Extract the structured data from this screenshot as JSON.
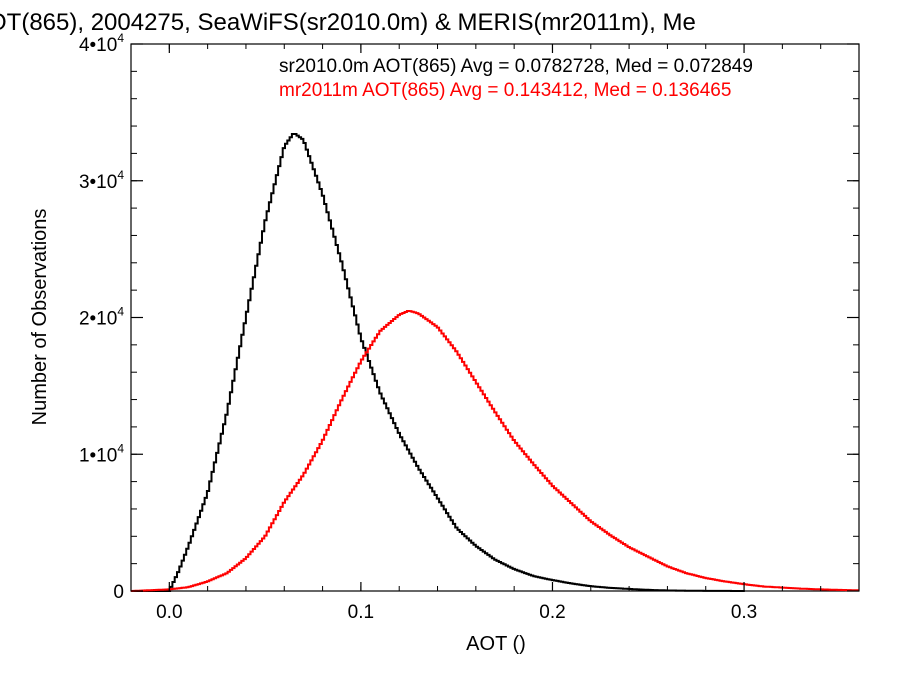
{
  "chart_data": {
    "type": "line",
    "title": "OT(865), 2004275, SeaWiFS(sr2010.0m) & MERIS(mr2011m), Me",
    "xlabel": "AOT ()",
    "ylabel": "Number of Observations",
    "xlim": [
      -0.02,
      0.36
    ],
    "ylim": [
      0,
      40000
    ],
    "x_ticks": [
      {
        "value": 0.0,
        "label": "0.0"
      },
      {
        "value": 0.1,
        "label": "0.1"
      },
      {
        "value": 0.2,
        "label": "0.2"
      },
      {
        "value": 0.3,
        "label": "0.3"
      }
    ],
    "y_ticks": [
      {
        "value": 0,
        "base": "0",
        "exp": ""
      },
      {
        "value": 10000,
        "base": "1•10",
        "exp": "4"
      },
      {
        "value": 20000,
        "base": "2•10",
        "exp": "4"
      },
      {
        "value": 30000,
        "base": "3•10",
        "exp": "4"
      },
      {
        "value": 40000,
        "base": "4•10",
        "exp": "4"
      }
    ],
    "grid": false,
    "legend_position": "top-right",
    "series": [
      {
        "name": "sr2010.0m AOT(865) Avg = 0.0782728, Med = 0.072849",
        "color": "#000000",
        "points": [
          [
            -0.02,
            0
          ],
          [
            0.0,
            0
          ],
          [
            0.005,
            1500
          ],
          [
            0.01,
            3300
          ],
          [
            0.02,
            7200
          ],
          [
            0.03,
            13000
          ],
          [
            0.04,
            20000
          ],
          [
            0.05,
            27000
          ],
          [
            0.06,
            32500
          ],
          [
            0.065,
            33500
          ],
          [
            0.07,
            33000
          ],
          [
            0.08,
            29000
          ],
          [
            0.09,
            24000
          ],
          [
            0.1,
            18500
          ],
          [
            0.11,
            14500
          ],
          [
            0.12,
            11500
          ],
          [
            0.13,
            9000
          ],
          [
            0.14,
            6800
          ],
          [
            0.15,
            4600
          ],
          [
            0.16,
            3300
          ],
          [
            0.17,
            2300
          ],
          [
            0.18,
            1600
          ],
          [
            0.19,
            1100
          ],
          [
            0.2,
            800
          ],
          [
            0.21,
            550
          ],
          [
            0.22,
            350
          ],
          [
            0.23,
            230
          ],
          [
            0.24,
            150
          ],
          [
            0.25,
            80
          ],
          [
            0.26,
            40
          ],
          [
            0.28,
            10
          ],
          [
            0.3,
            0
          ]
        ]
      },
      {
        "name": "mr2011m AOT(865) Avg = 0.143412, Med = 0.136465",
        "color": "#ff0000",
        "points": [
          [
            -0.02,
            0
          ],
          [
            0.0,
            120
          ],
          [
            0.01,
            280
          ],
          [
            0.02,
            700
          ],
          [
            0.03,
            1300
          ],
          [
            0.04,
            2400
          ],
          [
            0.05,
            4000
          ],
          [
            0.06,
            6500
          ],
          [
            0.07,
            8500
          ],
          [
            0.08,
            11000
          ],
          [
            0.09,
            14000
          ],
          [
            0.1,
            16800
          ],
          [
            0.11,
            19000
          ],
          [
            0.12,
            20200
          ],
          [
            0.125,
            20500
          ],
          [
            0.13,
            20300
          ],
          [
            0.14,
            19300
          ],
          [
            0.15,
            17500
          ],
          [
            0.16,
            15300
          ],
          [
            0.17,
            13100
          ],
          [
            0.18,
            11000
          ],
          [
            0.19,
            9300
          ],
          [
            0.2,
            7700
          ],
          [
            0.21,
            6400
          ],
          [
            0.22,
            5100
          ],
          [
            0.23,
            4100
          ],
          [
            0.24,
            3200
          ],
          [
            0.25,
            2500
          ],
          [
            0.26,
            1800
          ],
          [
            0.27,
            1300
          ],
          [
            0.28,
            950
          ],
          [
            0.29,
            700
          ],
          [
            0.3,
            500
          ],
          [
            0.31,
            330
          ],
          [
            0.32,
            250
          ],
          [
            0.33,
            170
          ],
          [
            0.34,
            120
          ],
          [
            0.35,
            80
          ],
          [
            0.36,
            50
          ]
        ]
      }
    ]
  }
}
